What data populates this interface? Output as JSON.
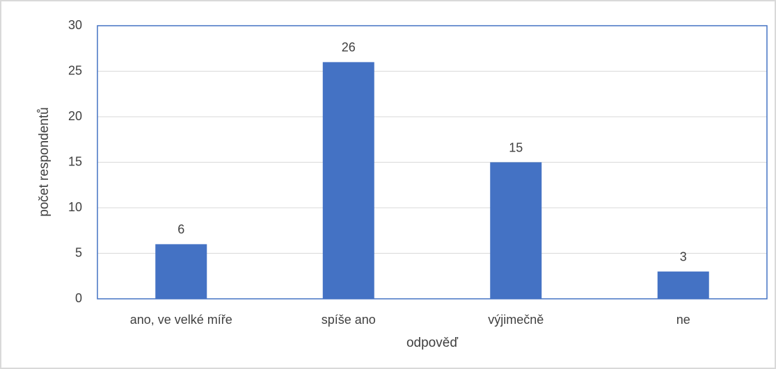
{
  "chart_data": {
    "type": "bar",
    "categories": [
      "ano, ve velké míře",
      "spíše ano",
      "výjimečně",
      "ne"
    ],
    "values": [
      6,
      26,
      15,
      3
    ],
    "color": "#4472c4",
    "xlabel": "odpověď",
    "ylabel": "počet respondentů",
    "ylim": [
      0,
      30
    ],
    "yticks": [
      0,
      5,
      10,
      15,
      20,
      25,
      30
    ],
    "grid": true
  }
}
